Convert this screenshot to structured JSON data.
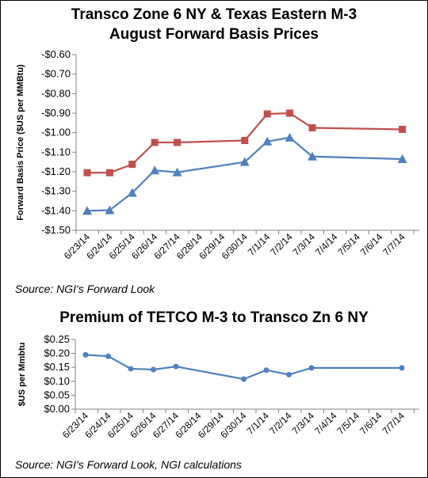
{
  "chart_data": [
    {
      "type": "line",
      "title": "Transco Zone 6 NY & Texas Eastern M-3",
      "subtitle": "August Forward Basis Prices",
      "ylabel": "Forward Basis Price ($US per MMBtu)",
      "xlabel": "",
      "x": [
        "6/23/14",
        "6/24/14",
        "6/25/14",
        "6/26/14",
        "6/27/14",
        "6/28/14",
        "6/29/14",
        "6/30/14",
        "7/1/14",
        "7/2/14",
        "7/3/14",
        "7/4/14",
        "7/5/14",
        "7/6/14",
        "7/7/14"
      ],
      "ylim": [
        -1.5,
        -0.6
      ],
      "yticks": [
        -0.6,
        -0.7,
        -0.8,
        -0.9,
        -1.0,
        -1.1,
        -1.2,
        -1.3,
        -1.4,
        -1.5
      ],
      "ytick_labels": [
        "-$0.60",
        "-$0.70",
        "-$0.80",
        "-$0.90",
        "-$1.00",
        "-$1.10",
        "-$1.20",
        "-$1.30",
        "-$1.40",
        "-$1.50"
      ],
      "grid": false,
      "legend": "none",
      "series": [
        {
          "marker": "square",
          "color": "#c0504d",
          "values": [
            -1.205,
            -1.205,
            -1.162,
            -1.05,
            -1.05,
            null,
            null,
            -1.04,
            -0.904,
            -0.9,
            -0.975,
            null,
            null,
            null,
            -0.983
          ]
        },
        {
          "marker": "triangle",
          "color": "#4f81bd",
          "values": [
            -1.4,
            -1.397,
            -1.308,
            -1.193,
            -1.203,
            null,
            null,
            -1.15,
            -1.045,
            -1.025,
            -1.122,
            null,
            null,
            null,
            -1.135
          ]
        }
      ],
      "source": "Source: NGI's Forward Look"
    },
    {
      "type": "line",
      "title": "Premium of TETCO M-3 to Transco Zn 6 NY",
      "ylabel": "$US per Mmbtu",
      "xlabel": "",
      "x": [
        "6/23/14",
        "6/24/14",
        "6/25/14",
        "6/26/14",
        "6/27/14",
        "6/28/14",
        "6/29/14",
        "6/30/14",
        "7/1/14",
        "7/2/14",
        "7/3/14",
        "7/4/14",
        "7/5/14",
        "7/6/14",
        "7/7/14"
      ],
      "ylim": [
        0.0,
        0.25
      ],
      "yticks": [
        0.25,
        0.2,
        0.15,
        0.1,
        0.05,
        0.0
      ],
      "ytick_labels": [
        "$0.25",
        "$0.20",
        "$0.15",
        "$0.10",
        "$0.05",
        "$0.00"
      ],
      "grid": false,
      "legend": "none",
      "series": [
        {
          "marker": "circle",
          "color": "#4f81bd",
          "values": [
            0.195,
            0.19,
            0.145,
            0.142,
            0.153,
            null,
            null,
            0.108,
            0.14,
            0.124,
            0.148,
            null,
            null,
            null,
            0.148
          ]
        }
      ],
      "source": "Source: NGI's Forward Look, NGI calculations"
    }
  ]
}
